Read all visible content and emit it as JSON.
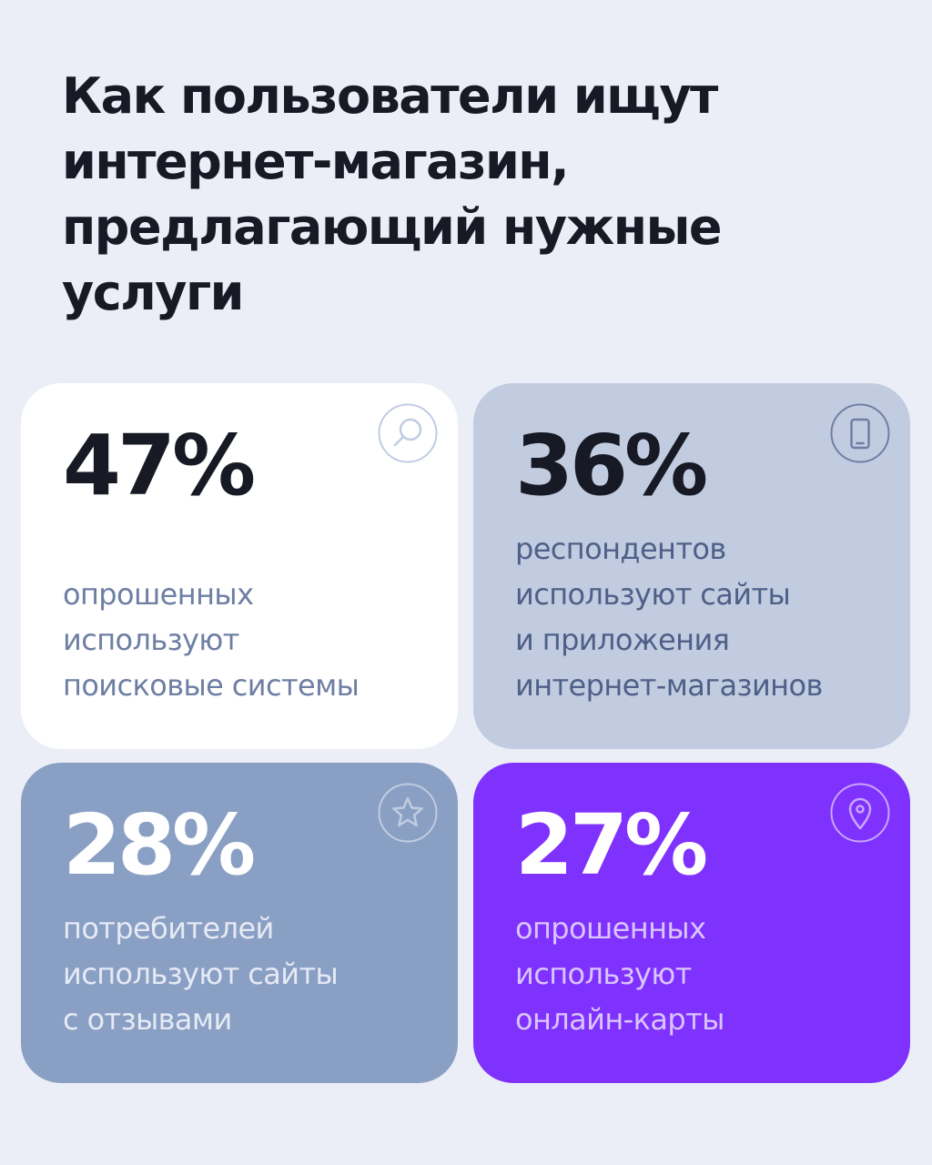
{
  "title": {
    "lines": [
      "Как пользователи ищут",
      "интернет-магазин,",
      "предлагающий нужные",
      "услуги"
    ]
  },
  "cards": [
    {
      "value": "47%",
      "description_lines": [
        "опрошенных",
        "используют",
        "поисковые системы"
      ],
      "icon": "search-icon",
      "background": "#ffffff",
      "value_color": "#171a24",
      "text_color": "#6e7fa4"
    },
    {
      "value": "36%",
      "description_lines": [
        "респондентов",
        "используют сайты",
        "и приложения",
        "интернет-магазинов"
      ],
      "icon": "smartphone-icon",
      "background": "#c1cce1",
      "value_color": "#171a24",
      "text_color": "#4f6088"
    },
    {
      "value": "28%",
      "description_lines": [
        "потребителей",
        "используют сайты",
        "с отзывами"
      ],
      "icon": "star-icon",
      "background": "#8a9fc4",
      "value_color": "#ffffff",
      "text_color": "#e5eaf4"
    },
    {
      "value": "27%",
      "description_lines": [
        "опрошенных",
        "используют",
        "онлайн-карты"
      ],
      "icon": "location-pin-icon",
      "background": "#7f31fd",
      "value_color": "#ffffff",
      "text_color": "#d9c5ff"
    }
  ]
}
